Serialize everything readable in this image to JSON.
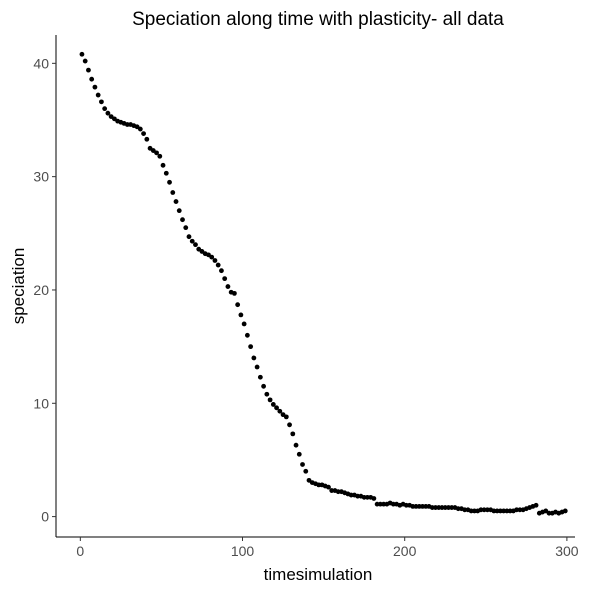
{
  "chart_data": {
    "type": "scatter",
    "title": "Speciation along time with plasticity- all data",
    "xlabel": "timesimulation",
    "ylabel": "speciation",
    "xlim": [
      -15,
      305
    ],
    "ylim": [
      -1.8,
      42.5
    ],
    "x_ticks": [
      0,
      100,
      200,
      300
    ],
    "y_ticks": [
      0,
      10,
      20,
      30,
      40
    ],
    "grid": false,
    "legend": "none",
    "point_color": "#000000",
    "x": [
      1,
      3,
      5,
      7,
      9,
      11,
      13,
      15,
      17,
      19,
      21,
      23,
      25,
      27,
      29,
      31,
      33,
      35,
      37,
      39,
      41,
      43,
      45,
      47,
      49,
      51,
      53,
      55,
      57,
      59,
      61,
      63,
      65,
      67,
      69,
      71,
      73,
      75,
      77,
      79,
      81,
      83,
      85,
      87,
      89,
      91,
      93,
      95,
      97,
      99,
      101,
      103,
      105,
      107,
      109,
      111,
      113,
      115,
      117,
      119,
      121,
      123,
      125,
      127,
      129,
      131,
      133,
      135,
      137,
      139,
      141,
      143,
      145,
      147,
      149,
      151,
      153,
      155,
      157,
      159,
      161,
      163,
      165,
      167,
      169,
      171,
      173,
      175,
      177,
      179,
      181,
      183,
      185,
      187,
      189,
      191,
      193,
      195,
      197,
      199,
      201,
      203,
      205,
      207,
      209,
      211,
      213,
      215,
      217,
      219,
      221,
      223,
      225,
      227,
      229,
      231,
      233,
      235,
      237,
      239,
      241,
      243,
      245,
      247,
      249,
      251,
      253,
      255,
      257,
      259,
      261,
      263,
      265,
      267,
      269,
      271,
      273,
      275,
      277,
      279,
      281,
      283,
      285,
      287,
      289,
      291,
      293,
      295,
      297,
      299
    ],
    "y": [
      40.8,
      40.2,
      39.4,
      38.6,
      37.9,
      37.2,
      36.6,
      36.0,
      35.6,
      35.3,
      35.1,
      34.9,
      34.8,
      34.7,
      34.6,
      34.6,
      34.5,
      34.4,
      34.2,
      33.8,
      33.3,
      32.5,
      32.3,
      32.1,
      31.8,
      31.0,
      30.3,
      29.5,
      28.6,
      27.8,
      27.0,
      26.2,
      25.5,
      24.7,
      24.3,
      24.0,
      23.6,
      23.4,
      23.2,
      23.1,
      22.9,
      22.6,
      22.2,
      21.7,
      21.0,
      20.3,
      19.8,
      19.7,
      18.7,
      17.8,
      17.0,
      16.0,
      15.0,
      14.0,
      13.2,
      12.3,
      11.5,
      10.8,
      10.3,
      9.9,
      9.6,
      9.3,
      9.0,
      8.8,
      8.1,
      7.3,
      6.3,
      5.5,
      4.6,
      4.0,
      3.2,
      3.0,
      2.9,
      2.8,
      2.8,
      2.7,
      2.6,
      2.3,
      2.3,
      2.2,
      2.2,
      2.1,
      2.0,
      1.9,
      1.9,
      1.8,
      1.8,
      1.7,
      1.7,
      1.7,
      1.6,
      1.1,
      1.1,
      1.1,
      1.1,
      1.2,
      1.1,
      1.1,
      1.0,
      1.1,
      1.0,
      1.0,
      0.9,
      0.9,
      0.9,
      0.9,
      0.9,
      0.9,
      0.8,
      0.8,
      0.8,
      0.8,
      0.8,
      0.8,
      0.8,
      0.8,
      0.7,
      0.7,
      0.6,
      0.6,
      0.5,
      0.5,
      0.5,
      0.6,
      0.6,
      0.6,
      0.6,
      0.5,
      0.5,
      0.5,
      0.5,
      0.5,
      0.5,
      0.5,
      0.6,
      0.6,
      0.6,
      0.7,
      0.8,
      0.9,
      1.0,
      0.3,
      0.4,
      0.5,
      0.3,
      0.3,
      0.4,
      0.3,
      0.4,
      0.5
    ]
  }
}
